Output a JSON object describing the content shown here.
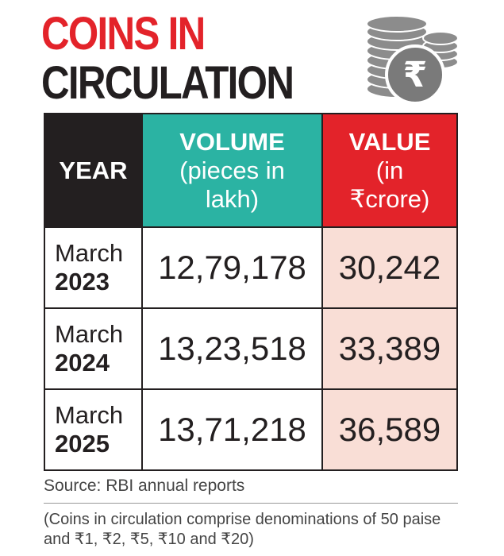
{
  "header": {
    "title_line1": "COINS IN",
    "title_line2": "CIRCULATION"
  },
  "table": {
    "columns": [
      {
        "title": "YEAR"
      },
      {
        "title": "VOLUME",
        "subtitle": "(pieces in lakh)"
      },
      {
        "title": "VALUE",
        "subtitle": "(in ₹crore)"
      }
    ],
    "rows": [
      [
        "March",
        "2023",
        "12,79,178",
        "30,242"
      ],
      [
        "March",
        "2024",
        "13,23,518",
        "33,389"
      ],
      [
        "March",
        "2025",
        "13,71,218",
        "36,589"
      ]
    ]
  },
  "source": "Source: RBI annual reports",
  "note": "(Coins in circulation comprise denominations of 50 paise and ₹1, ₹2, ₹5, ₹10 and ₹20)"
}
